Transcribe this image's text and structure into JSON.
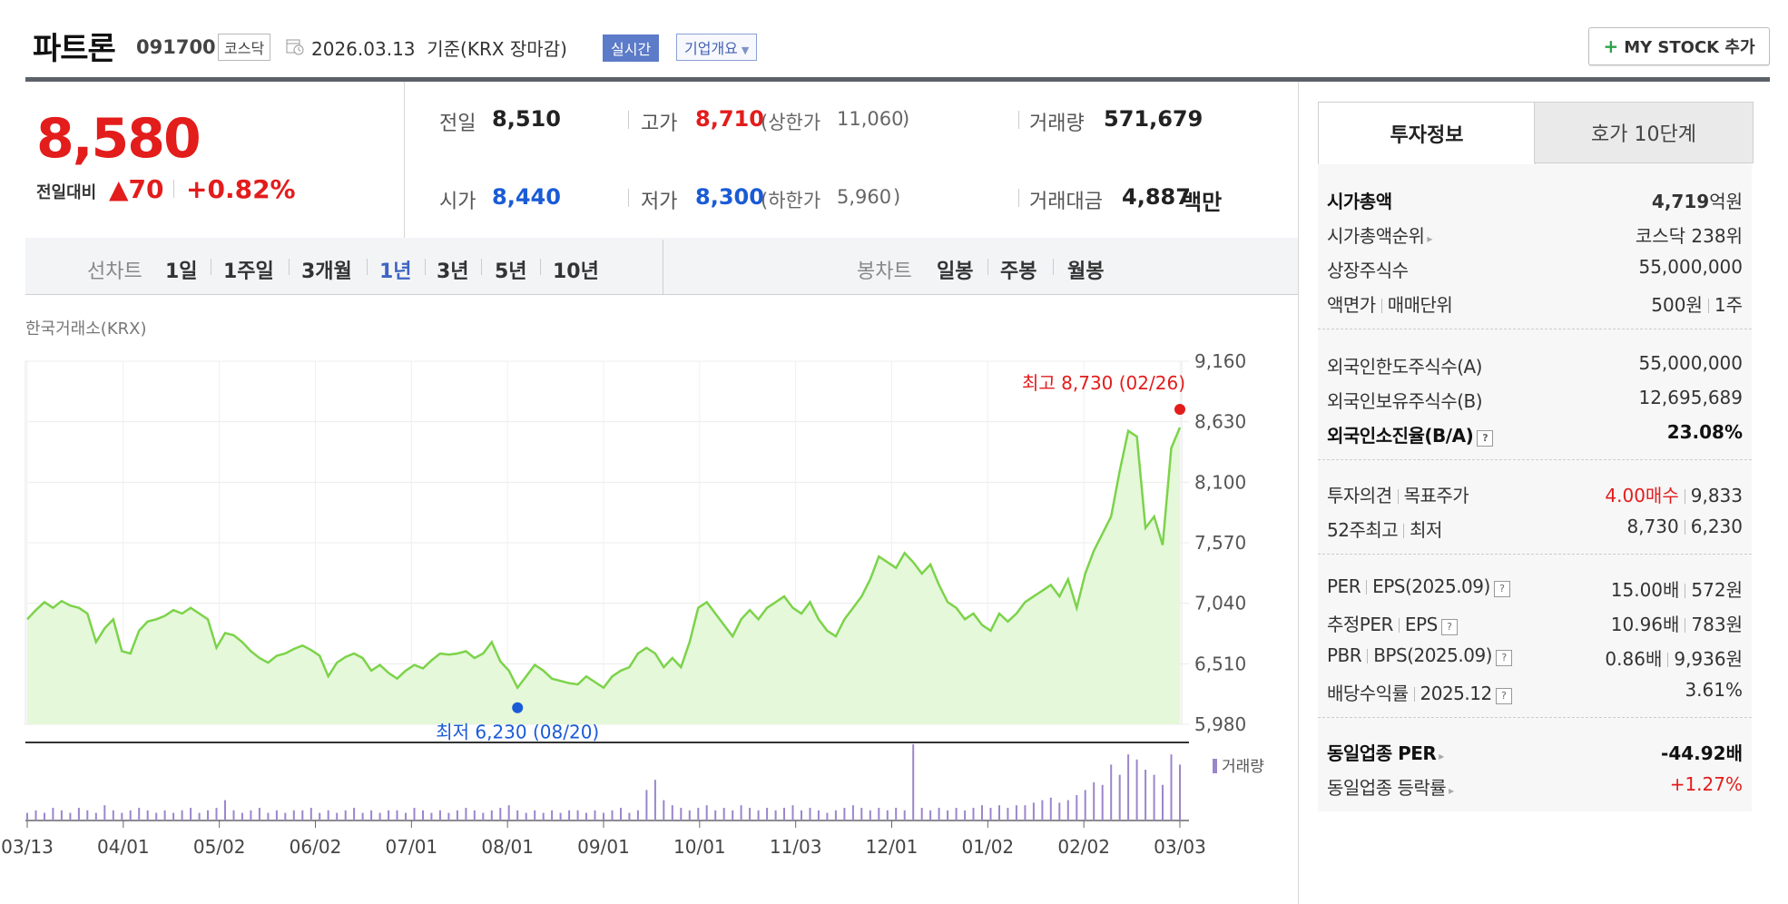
{
  "header": {
    "name": "파트론",
    "code": "091700",
    "market": "코스닥",
    "date": "2026.03.13  기준(KRX 장마감)",
    "realtime": "실시간",
    "overview": "기업개요",
    "mystock": "MY STOCK 추가"
  },
  "quote": {
    "price": "8,580",
    "change_label": "전일대비",
    "change_value": "▲70",
    "change_pct": "+0.82%",
    "prev_label": "전일",
    "prev": "8,510",
    "high_label": "고가",
    "high": "8,710",
    "upper_label": "(상한가",
    "upper": "11,060",
    "upper_close": ")",
    "volume_label": "거래량",
    "volume": "571,679",
    "open_label": "시가",
    "open": "8,440",
    "low_label": "저가",
    "low": "8,300",
    "lower_label": "(하한가",
    "lower": "5,960",
    "lower_close": ")",
    "amount_label": "거래대금",
    "amount": "4,887",
    "amount_unit": "백만"
  },
  "tabs": {
    "line_label": "선차트",
    "line": [
      "1일",
      "1주일",
      "3개월",
      "1년",
      "3년",
      "5년",
      "10년"
    ],
    "active": "1년",
    "candle_label": "봉차트",
    "candle": [
      "일봉",
      "주봉",
      "월봉"
    ]
  },
  "chart_source": "한국거래소(KRX)",
  "chart_data": {
    "type": "area",
    "title": "",
    "y_ticks": [
      "9,160",
      "8,630",
      "8,100",
      "7,570",
      "7,040",
      "6,510",
      "5,980"
    ],
    "ylim": [
      5980,
      9160
    ],
    "x_ticks": [
      "03/13",
      "04/01",
      "05/02",
      "06/02",
      "07/01",
      "08/01",
      "09/01",
      "10/01",
      "11/03",
      "12/01",
      "01/02",
      "02/02",
      "03/03"
    ],
    "max_label": "최고 8,730 (02/26)",
    "min_label": "최저 6,230 (08/20)",
    "volume_label": "거래량",
    "grid": true,
    "series": [
      {
        "values": [
          6900,
          6980,
          7050,
          7000,
          7060,
          7020,
          7000,
          6950,
          6700,
          6820,
          6900,
          6620,
          6600,
          6800,
          6880,
          6900,
          6930,
          6980,
          6950,
          7000,
          6950,
          6900,
          6650,
          6780,
          6760,
          6700,
          6620,
          6560,
          6520,
          6580,
          6600,
          6640,
          6670,
          6630,
          6580,
          6400,
          6520,
          6570,
          6600,
          6560,
          6450,
          6500,
          6430,
          6380,
          6450,
          6500,
          6470,
          6540,
          6600,
          6590,
          6600,
          6620,
          6560,
          6600,
          6700,
          6530,
          6450,
          6300,
          6400,
          6500,
          6450,
          6380,
          6360,
          6340,
          6330,
          6400,
          6350,
          6300,
          6400,
          6450,
          6480,
          6600,
          6650,
          6600,
          6480,
          6560,
          6480,
          6700,
          7000,
          7050,
          6950,
          6850,
          6750,
          6900,
          6980,
          6900,
          7000,
          7050,
          7100,
          7000,
          6950,
          7050,
          6900,
          6800,
          6750,
          6900,
          7000,
          7100,
          7250,
          7450,
          7400,
          7350,
          7480,
          7400,
          7300,
          7380,
          7200,
          7050,
          7000,
          6900,
          6950,
          6850,
          6800,
          6950,
          6880,
          6950,
          7050,
          7100,
          7150,
          7200,
          7100,
          7250,
          7000,
          7300,
          7500,
          7650,
          7800,
          8200,
          8550,
          8500,
          7700,
          7800,
          7550,
          8400,
          8580
        ],
        "volume": [
          3,
          4,
          3,
          5,
          4,
          3,
          5,
          4,
          3,
          6,
          4,
          3,
          4,
          5,
          4,
          3,
          4,
          3,
          4,
          5,
          3,
          4,
          5,
          8,
          4,
          3,
          4,
          5,
          3,
          4,
          3,
          4,
          4,
          5,
          3,
          4,
          3,
          4,
          5,
          3,
          4,
          3,
          4,
          4,
          3,
          5,
          4,
          3,
          4,
          3,
          4,
          5,
          4,
          3,
          4,
          5,
          6,
          4,
          3,
          4,
          3,
          4,
          3,
          4,
          4,
          3,
          4,
          3,
          4,
          5,
          3,
          4,
          12,
          16,
          8,
          6,
          5,
          4,
          5,
          6,
          4,
          5,
          4,
          6,
          5,
          4,
          5,
          4,
          5,
          6,
          4,
          5,
          4,
          3,
          4,
          5,
          6,
          5,
          4,
          5,
          4,
          5,
          4,
          30,
          5,
          4,
          5,
          4,
          5,
          4,
          5,
          6,
          5,
          6,
          5,
          6,
          6,
          7,
          8,
          9,
          7,
          8,
          10,
          12,
          15,
          14,
          22,
          18,
          26,
          24,
          20,
          18,
          14,
          26,
          22
        ]
      }
    ]
  },
  "right_panel": {
    "tab_active": "투자정보",
    "tab_other": "호가 10단계",
    "sec1": [
      {
        "label": "시가총액",
        "value": "4,719",
        "unit": "억원",
        "bold": true
      },
      {
        "label": "시가총액순위",
        "value": "코스닥 238위"
      },
      {
        "label": "상장주식수",
        "value": "55,000,000"
      },
      {
        "label": "액면가",
        "label2": "매매단위",
        "value": "500원",
        "value2": "1주"
      }
    ],
    "sec2": [
      {
        "label": "외국인한도주식수(A)",
        "value": "55,000,000"
      },
      {
        "label": "외국인보유주식수(B)",
        "value": "12,695,689"
      },
      {
        "label": "외국인소진율(B/A)",
        "value": "23.08%",
        "bold": true
      }
    ],
    "sec3": [
      {
        "label": "투자의견",
        "label2": "목표주가",
        "value": "4.00매수",
        "value2": "9,833"
      },
      {
        "label": "52주최고",
        "label2": "최저",
        "value": "8,730",
        "value2": "6,230"
      }
    ],
    "sec4": [
      {
        "label": "PER",
        "label2": "EPS(2025.09)",
        "value": "15.00배",
        "value2": "572원"
      },
      {
        "label": "추정PER",
        "label2": "EPS",
        "value": "10.96배",
        "value2": "783원"
      },
      {
        "label": "PBR",
        "label2": "BPS(2025.09)",
        "value": "0.86배",
        "value2": "9,936원"
      },
      {
        "label": "배당수익률",
        "label2": "2025.12",
        "value": "3.61%"
      }
    ],
    "sec5": [
      {
        "label": "동일업종 PER",
        "value": "-44.92배",
        "bold": true
      },
      {
        "label": "동일업종 등락률",
        "value": "+1.27%"
      }
    ],
    "help_icon": "?"
  },
  "colors": {
    "up": "#e31c1c",
    "down": "#1a5bd6",
    "line": "#7cd34a",
    "fill": "#e5f8da",
    "volume": "#9b86cc"
  }
}
